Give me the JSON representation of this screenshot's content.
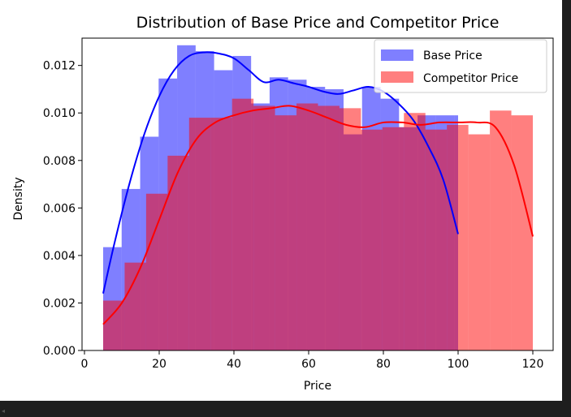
{
  "chart_data": {
    "type": "histogram",
    "title": "Distribution of Base Price and Competitor Price",
    "xlabel": "Price",
    "ylabel": "Density",
    "xlim": [
      -0.5,
      125
    ],
    "ylim": [
      0,
      0.01315
    ],
    "xticks": [
      0,
      20,
      40,
      60,
      80,
      100,
      120
    ],
    "yticks": [
      0.0,
      0.002,
      0.004,
      0.006,
      0.008,
      0.01,
      0.012
    ],
    "ytick_labels": [
      "0.000",
      "0.002",
      "0.004",
      "0.006",
      "0.008",
      "0.010",
      "0.012"
    ],
    "grid": false,
    "legend_position": "top-right",
    "series": [
      {
        "name": "Base Price",
        "color": "#0000ff",
        "bar_alpha": 0.5,
        "bin_edges": [
          5,
          9.95,
          14.9,
          19.85,
          24.8,
          29.75,
          34.7,
          39.65,
          44.6,
          49.55,
          54.5,
          59.45,
          64.4,
          69.35,
          74.3,
          79.25,
          84.2,
          89.15,
          94.1,
          99.05,
          100
        ],
        "densities": [
          0.00435,
          0.0068,
          0.009,
          0.01145,
          0.01285,
          0.0126,
          0.0118,
          0.0124,
          0.0104,
          0.0115,
          0.0114,
          0.0111,
          0.011,
          0.0091,
          0.0111,
          0.0106,
          0.0094,
          0.0099,
          0.0099,
          0.0099
        ],
        "kde_x": [
          5,
          8,
          12,
          16,
          20,
          24,
          28,
          32,
          36,
          40,
          44,
          48,
          52,
          56,
          60,
          64,
          68,
          72,
          76,
          80,
          84,
          88,
          92,
          96,
          100
        ],
        "kde_y": [
          0.0024,
          0.0045,
          0.007,
          0.0091,
          0.0107,
          0.0118,
          0.0124,
          0.01255,
          0.0125,
          0.0123,
          0.0118,
          0.0113,
          0.0114,
          0.01125,
          0.0111,
          0.0109,
          0.0108,
          0.01095,
          0.0111,
          0.0109,
          0.0104,
          0.0097,
          0.0086,
          0.0072,
          0.0049
        ]
      },
      {
        "name": "Competitor Price",
        "color": "#ff0000",
        "bar_alpha": 0.5,
        "bin_edges": [
          5,
          10.75,
          16.5,
          22.25,
          28,
          33.75,
          39.5,
          45.25,
          51,
          56.75,
          62.5,
          68.25,
          74,
          79.75,
          85.5,
          91.25,
          97,
          102.75,
          108.5,
          114.25,
          120
        ],
        "densities": [
          0.0021,
          0.0037,
          0.0066,
          0.0082,
          0.0098,
          0.0098,
          0.0106,
          0.0103,
          0.0099,
          0.0104,
          0.0103,
          0.0102,
          0.0093,
          0.0094,
          0.01,
          0.0093,
          0.0095,
          0.0091,
          0.0101,
          0.0099
        ],
        "kde_x": [
          5,
          10,
          15,
          20,
          25,
          30,
          35,
          40,
          45,
          50,
          55,
          60,
          65,
          70,
          75,
          80,
          85,
          90,
          95,
          100,
          105,
          110,
          115,
          120
        ],
        "kde_y": [
          0.0011,
          0.002,
          0.0035,
          0.0055,
          0.0075,
          0.0089,
          0.0096,
          0.0099,
          0.0101,
          0.0102,
          0.0103,
          0.0101,
          0.0098,
          0.0095,
          0.0094,
          0.0096,
          0.0096,
          0.0095,
          0.0096,
          0.0096,
          0.0096,
          0.0094,
          0.0078,
          0.0048
        ]
      }
    ]
  }
}
